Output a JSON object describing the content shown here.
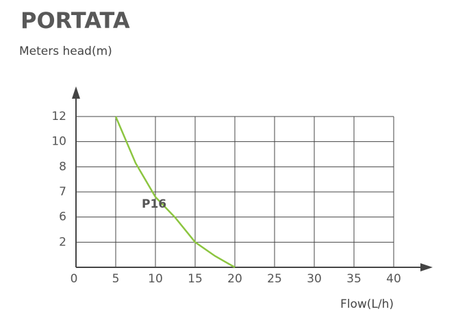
{
  "chart_data": {
    "type": "line",
    "title": "PORTATA",
    "y_label": "Meters head(m)",
    "x_label": "Flow(L/h)",
    "x": [
      5,
      7.5,
      10,
      12.5,
      15,
      17.5,
      20
    ],
    "series": [
      {
        "name": "P16",
        "color": "#8cc540",
        "values": [
          12,
          8.3,
          6.8,
          5.9,
          2,
          0.9,
          0
        ]
      }
    ],
    "xlim": [
      0,
      40
    ],
    "xticks": [
      0,
      5,
      10,
      15,
      20,
      25,
      30,
      35,
      40
    ],
    "ylim": [
      0,
      12
    ],
    "yticks": [
      2,
      6,
      7,
      8,
      10,
      12
    ],
    "grid": true
  }
}
